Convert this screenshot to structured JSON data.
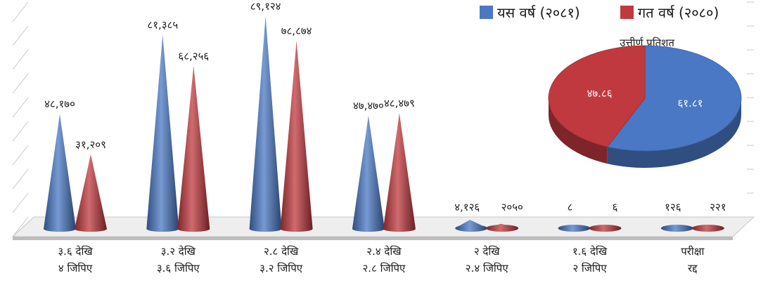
{
  "chart_data": [
    {
      "type": "bar",
      "bar_shape": "cone-3d",
      "categories": [
        [
          "३.६ देखि",
          "४ जिपिए"
        ],
        [
          "३.२ देखि",
          "३.६ जिपिए"
        ],
        [
          "२.८ देखि",
          "३.२ जिपिए"
        ],
        [
          "२.४ देखि",
          "२.८ जिपिए"
        ],
        [
          "२ देखि",
          "२.४ जिपिए"
        ],
        [
          "१.६ देखि",
          "२ जिपिए"
        ],
        [
          "परीक्षा",
          "रद्द"
        ]
      ],
      "series": [
        {
          "name": "यस वर्ष (२०८१)",
          "color": "#4a78c4",
          "values": [
            48170,
            81385,
            89124,
            47470,
            4126,
            8,
            126
          ],
          "labels": [
            "४८,१७०",
            "८१,३८५",
            "८९,१२४",
            "४७,४७०",
            "४,१२६",
            "८",
            "१२६"
          ]
        },
        {
          "name": "गत वर्ष (२०८०)",
          "color": "#c0393f",
          "values": [
            31209,
            68256,
            78874,
            48479,
            2050,
            6,
            221
          ],
          "labels": [
            "३१,२०९",
            "६८,२५६",
            "७८,८७४",
            "४८,४७९",
            "२०५०",
            "६",
            "२२१"
          ]
        }
      ],
      "ylim": [
        0,
        90000
      ],
      "grid": true,
      "legend": "top-right"
    },
    {
      "type": "pie",
      "title": "उत्तीर्ण प्रतिशत",
      "slices": [
        {
          "label": "६१.८१",
          "value": 61.81,
          "color": "#4a78c4"
        },
        {
          "label": "४७.८६",
          "value": 47.86,
          "color": "#c0393f"
        }
      ]
    }
  ]
}
